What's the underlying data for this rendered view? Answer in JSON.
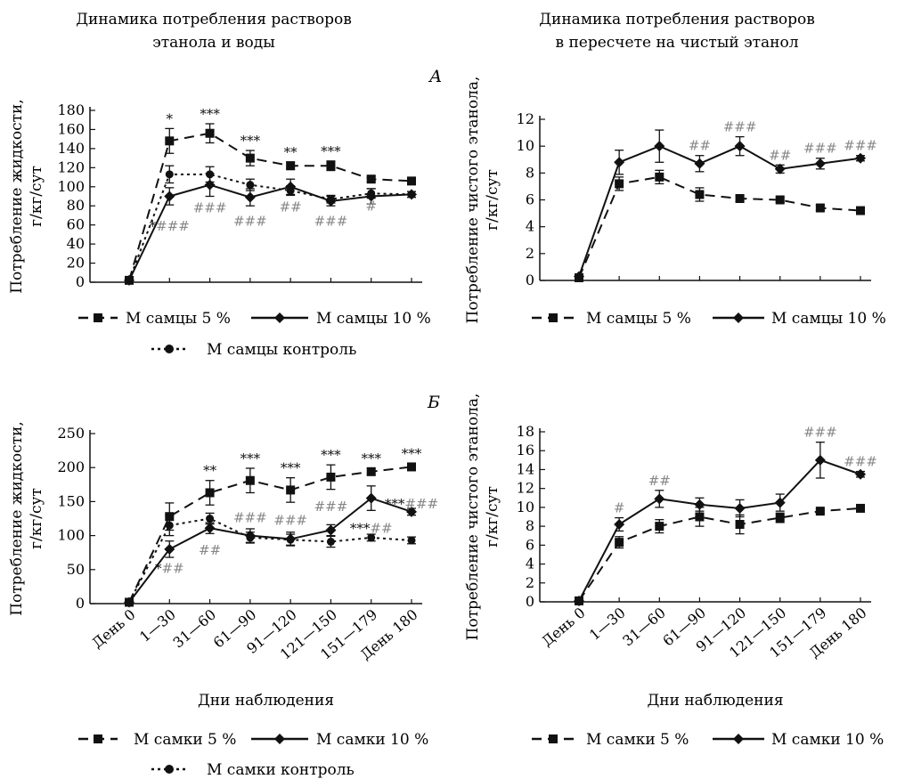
{
  "titles": {
    "left": [
      "Динамика потребления растворов",
      "этанола и воды"
    ],
    "right": [
      "Динамика потребления растворов",
      "в пересчете на чистый этанол"
    ]
  },
  "panel_labels": {
    "A": "А",
    "B": "Б"
  },
  "legends": {
    "top_left": [
      "М самцы 5 %",
      "М самцы 10 %",
      "М самцы контроль"
    ],
    "top_right": [
      "М самцы 5 %",
      "М самцы 10 %"
    ],
    "bottom_left": [
      "М самки 5 %",
      "М самки 10 %",
      "М самки контроль"
    ],
    "bottom_right": [
      "М самки 5 %",
      "М самки 10 %"
    ]
  },
  "colors": {
    "axis": "#111111",
    "star": "#111111",
    "hash": "#888888"
  },
  "chart_data": [
    {
      "id": "A-left",
      "type": "line",
      "panel": "А",
      "title": "Динамика потребления растворов этанола и воды",
      "ylabel": "Потребление жидкости, г/кг/сут",
      "xlabel": "",
      "ylim": [
        0,
        180
      ],
      "yticks": [
        0,
        20,
        40,
        60,
        80,
        100,
        120,
        140,
        160,
        180
      ],
      "categories": [
        "День 0",
        "1—30",
        "31—60",
        "61—90",
        "91—120",
        "121—150",
        "151—179",
        "День 180"
      ],
      "series": [
        {
          "name": "М самцы 5 %",
          "style": "dashed",
          "marker": "square",
          "values": [
            2,
            148,
            156,
            130,
            122,
            122,
            108,
            106
          ],
          "errors": [
            2,
            13,
            10,
            8,
            4,
            5,
            3,
            3
          ]
        },
        {
          "name": "М самцы 10 %",
          "style": "solid",
          "marker": "diamond",
          "values": [
            2,
            90,
            102,
            89,
            100,
            85,
            90,
            92
          ],
          "errors": [
            2,
            9,
            12,
            9,
            8,
            5,
            8,
            3
          ]
        },
        {
          "name": "М самцы контроль",
          "style": "dotted",
          "marker": "circle",
          "values": [
            2,
            113,
            113,
            102,
            96,
            87,
            93,
            92
          ],
          "errors": [
            2,
            9,
            8,
            6,
            5,
            4,
            5,
            3
          ]
        }
      ],
      "annotations_top": [
        [
          "",
          "*",
          "***",
          "***",
          "**",
          "***",
          "",
          ""
        ]
      ],
      "annotations_bottom": [
        {
          "index": 1,
          "parts": [
            [
              "*",
              "star"
            ],
            [
              "###",
              "hash"
            ]
          ],
          "y": 54
        },
        {
          "index": 2,
          "parts": [
            [
              "###",
              "hash"
            ]
          ],
          "y": 73
        },
        {
          "index": 3,
          "parts": [
            [
              "###",
              "hash"
            ]
          ],
          "y": 59
        },
        {
          "index": 4,
          "parts": [
            [
              "##",
              "hash"
            ]
          ],
          "y": 74
        },
        {
          "index": 5,
          "parts": [
            [
              "###",
              "hash"
            ]
          ],
          "y": 59
        },
        {
          "index": 6,
          "parts": [
            [
              "#",
              "hash"
            ]
          ],
          "y": 75
        }
      ]
    },
    {
      "id": "A-right",
      "type": "line",
      "panel": "А",
      "title": "Динамика потребления растворов в пересчете на чистый этанол",
      "ylabel": "Потребление чистого этанола, г/кг/сут",
      "xlabel": "",
      "ylim": [
        0,
        12
      ],
      "yticks": [
        0,
        2,
        4,
        6,
        8,
        10,
        12
      ],
      "categories": [
        "День 0",
        "1—30",
        "31—60",
        "61—90",
        "91—120",
        "121—150",
        "151—179",
        "День 180"
      ],
      "series": [
        {
          "name": "М самцы 5 %",
          "style": "dashed",
          "marker": "square",
          "values": [
            0.2,
            7.2,
            7.7,
            6.4,
            6.1,
            6.0,
            5.4,
            5.2
          ],
          "errors": [
            0.1,
            0.5,
            0.5,
            0.5,
            0.2,
            0.2,
            0.2,
            0.2
          ]
        },
        {
          "name": "М самцы 10 %",
          "style": "solid",
          "marker": "diamond",
          "values": [
            0.3,
            8.8,
            10.0,
            8.7,
            10.0,
            8.3,
            8.7,
            9.1
          ],
          "errors": [
            0.1,
            0.9,
            1.2,
            0.6,
            0.7,
            0.3,
            0.4,
            0.2
          ]
        }
      ],
      "annotations_top": [
        [
          "",
          "",
          "",
          "##",
          "###",
          "##",
          "###",
          "###"
        ]
      ],
      "annotations_bottom": []
    },
    {
      "id": "B-left",
      "type": "line",
      "panel": "Б",
      "title": "",
      "ylabel": "Потребление жидкости, г/кг/сут",
      "xlabel": "Дни наблюдения",
      "ylim": [
        0,
        250
      ],
      "yticks": [
        0,
        50,
        100,
        150,
        200,
        250
      ],
      "categories": [
        "День 0",
        "1—30",
        "31—60",
        "61—90",
        "91—120",
        "121—150",
        "151—179",
        "День 180"
      ],
      "series": [
        {
          "name": "М самки 5 %",
          "style": "dashed",
          "marker": "square",
          "values": [
            2,
            128,
            163,
            181,
            167,
            186,
            194,
            201
          ],
          "errors": [
            2,
            20,
            18,
            18,
            18,
            18,
            5,
            5
          ]
        },
        {
          "name": "М самки 10 %",
          "style": "solid",
          "marker": "diamond",
          "values": [
            2,
            80,
            111,
            100,
            95,
            108,
            155,
            135
          ],
          "errors": [
            2,
            12,
            8,
            10,
            10,
            8,
            18,
            5
          ]
        },
        {
          "name": "М самки контроль",
          "style": "dotted",
          "marker": "circle",
          "values": [
            2,
            115,
            125,
            97,
            94,
            91,
            97,
            93
          ],
          "errors": [
            2,
            15,
            8,
            8,
            8,
            8,
            5,
            5
          ]
        }
      ],
      "annotations_top": [
        [
          "",
          "",
          "**",
          "***",
          "***",
          "***",
          "***",
          "***"
        ]
      ],
      "annotations_bottom": [
        {
          "index": 1,
          "parts": [
            [
              "*",
              "star"
            ],
            [
              "##",
              "hash"
            ]
          ],
          "y": 45
        },
        {
          "index": 2,
          "parts": [
            [
              "##",
              "hash"
            ]
          ],
          "y": 72
        },
        {
          "index": 3,
          "parts": [
            [
              "###",
              "hash"
            ]
          ],
          "y": 120
        },
        {
          "index": 4,
          "parts": [
            [
              "###",
              "hash"
            ]
          ],
          "y": 116
        },
        {
          "index": 5,
          "parts": [
            [
              "###",
              "hash"
            ]
          ],
          "y": 136
        },
        {
          "index": 6,
          "parts": [
            [
              "***",
              "star"
            ],
            [
              "##",
              "hash"
            ]
          ],
          "y": 104
        },
        {
          "index": 7,
          "parts": [
            [
              "***",
              "star"
            ],
            [
              "###",
              "hash"
            ]
          ],
          "y": 140
        }
      ]
    },
    {
      "id": "B-right",
      "type": "line",
      "panel": "Б",
      "title": "",
      "ylabel": "Потребление чистого этанола, г/кг/сут",
      "xlabel": "Дни наблюдения",
      "ylim": [
        0,
        18
      ],
      "yticks": [
        0,
        2,
        4,
        6,
        8,
        10,
        12,
        14,
        16,
        18
      ],
      "categories": [
        "День 0",
        "1—30",
        "31—60",
        "61—90",
        "91—120",
        "121—150",
        "151—179",
        "День 180"
      ],
      "series": [
        {
          "name": "М самки 5 %",
          "style": "dashed",
          "marker": "square",
          "values": [
            0.1,
            6.3,
            8.0,
            9.0,
            8.2,
            8.9,
            9.6,
            9.9
          ],
          "errors": [
            0.1,
            0.6,
            0.7,
            1.0,
            1.0,
            0.5,
            0.2,
            0.2
          ]
        },
        {
          "name": "М самки 10 %",
          "style": "solid",
          "marker": "diamond",
          "values": [
            0.1,
            8.2,
            10.9,
            10.3,
            9.9,
            10.5,
            15.0,
            13.5
          ],
          "errors": [
            0.1,
            0.7,
            0.9,
            0.7,
            0.9,
            0.9,
            1.9,
            0.3
          ]
        }
      ],
      "annotations_top": [
        [
          "",
          "#",
          "##",
          "",
          "",
          "",
          "###",
          "###"
        ]
      ],
      "annotations_bottom": []
    }
  ]
}
